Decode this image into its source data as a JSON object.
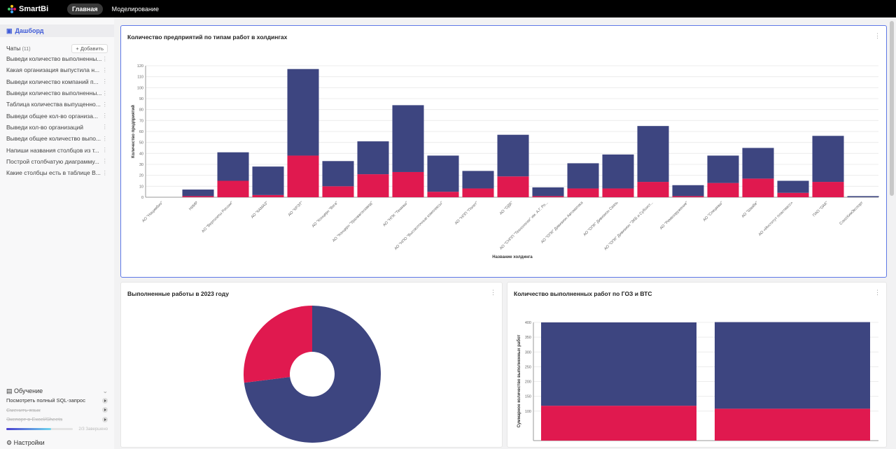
{
  "app": {
    "name": "SmartBi",
    "nav": [
      {
        "label": "Главная",
        "active": true
      },
      {
        "label": "Моделирование",
        "active": false
      }
    ]
  },
  "sidebar": {
    "dashboard": "Дашборд",
    "chats_label": "Чаты",
    "chats_count": "(11)",
    "add_label": "Добавить",
    "chats": [
      "Выведи количество выполненны...",
      "Какая организация выпустила н...",
      "Выведи количество компаний п...",
      "Выведи количество выполненны...",
      "Таблица количества выпущенно...",
      "Выведи общее кол-во организа...",
      "Выведи кол-во организаций",
      "Выведи общее количество выпо...",
      "Напиши названия столбцов из т...",
      "Построй столбчатую диаграмму...",
      "Какие столбцы есть в таблице В..."
    ],
    "learning": {
      "title": "Обучение",
      "items": [
        {
          "label": "Посмотреть полный SQL-запрос",
          "done": false
        },
        {
          "label": "Сменить язык",
          "done": true
        },
        {
          "label": "Экспорт в Excel/Sheets",
          "done": true
        }
      ],
      "progress_text": "2/3 Завершено",
      "progress": 0.67
    },
    "settings": "Настройки"
  },
  "colors": {
    "blue": "#3d4580",
    "red": "#e0194f",
    "accent": "#3f5bd8"
  },
  "chart_data": [
    {
      "type": "bar",
      "stacked": true,
      "title": "Количество предприятий по типам работ в холдингах",
      "xlabel": "Название холдинга",
      "ylabel": "Количество предприятий",
      "ylim": [
        0,
        120
      ],
      "yticks": [
        0,
        10,
        20,
        30,
        40,
        50,
        60,
        70,
        80,
        90,
        100,
        110,
        120
      ],
      "grid": true,
      "categories": [
        "АО \"Нацимбио\"",
        "НИИР",
        "АО \"Вертолеты России\"",
        "АО \"КАМАЗ\"",
        "АО \"КРЭТ\"",
        "АО \"Концерн \"Вега\"",
        "АО \"Концерн \"Уралвагонзавод\"",
        "АО \"НПК \"Техмаш\"",
        "АО \"НПО \"Высокоточные комплексы\"",
        "АО \"НПП \"Полет\"",
        "АО \"ОДК\"",
        "АО \"СНПП \"Технологии\" им. А.Г. Ро...",
        "АО \"ОПК\" Дивизион Автоматика",
        "АО \"ОПК\" Дивизион Связь",
        "АО \"ОПК\" Дивизион \"ЭКБ и Субсист...",
        "АО \"Ремвооружение\"",
        "АО \"Спецмаш\"",
        "АО \"Швабе\"",
        "АО «Институт пластмасс»",
        "ПАО \"ОАК\"",
        "СоюзХимЭкспорт"
      ],
      "series": [
        {
          "values": [
            0,
            1,
            15,
            2,
            38,
            10,
            21,
            23,
            5,
            8,
            19,
            1,
            8,
            8,
            14,
            1,
            13,
            17,
            4,
            14,
            0
          ],
          "color": "#e0194f"
        },
        {
          "values": [
            0,
            6,
            26,
            26,
            79,
            23,
            30,
            61,
            33,
            16,
            38,
            8,
            23,
            31,
            51,
            10,
            25,
            28,
            11,
            42,
            1
          ],
          "color": "#3d4580"
        }
      ]
    },
    {
      "type": "pie",
      "donut": true,
      "title": "Выполненные работы в 2023 году",
      "values": [
        73,
        27
      ],
      "colors": [
        "#3d4580",
        "#e0194f"
      ]
    },
    {
      "type": "bar",
      "stacked": true,
      "title": "Количество выполненных работ по ГОЗ и ВТС",
      "ylabel": "Суммарное количество выполненных работ",
      "ylim": [
        0,
        400
      ],
      "yticks": [
        100,
        150,
        200,
        250,
        300,
        350,
        400
      ],
      "grid": true,
      "series": [
        {
          "values": [
            118,
            108
          ],
          "color": "#e0194f"
        },
        {
          "values": [
            282,
            293
          ],
          "color": "#3d4580"
        }
      ]
    }
  ]
}
